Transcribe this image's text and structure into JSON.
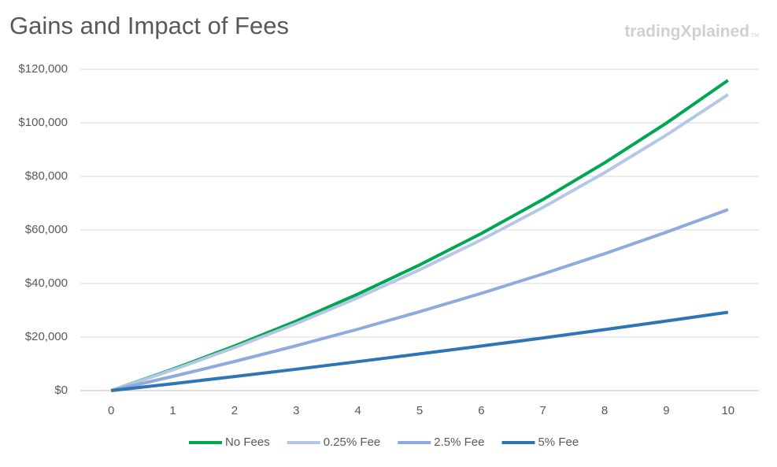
{
  "chart_data": {
    "type": "line",
    "title": "Gains and Impact of Fees",
    "watermark": "tradingXplained",
    "watermark_mark": "TM",
    "categories": [
      "0",
      "1",
      "2",
      "3",
      "4",
      "5",
      "6",
      "7",
      "8",
      "9",
      "10"
    ],
    "series": [
      {
        "name": "No Fees",
        "color": "#00a651",
        "values": [
          0,
          8000,
          16640,
          25971,
          36049,
          46933,
          58687,
          71382,
          85093,
          99900,
          115892
        ]
      },
      {
        "name": "0.25% Fee",
        "color": "#b4c7e7",
        "values": [
          0,
          7730,
          16058,
          25029,
          34694,
          45106,
          56323,
          68406,
          81424,
          95448,
          110556
        ]
      },
      {
        "name": "2.5% Fee",
        "color": "#8faadc",
        "values": [
          0,
          5300,
          10881,
          16758,
          22946,
          29462,
          36324,
          43549,
          51157,
          59168,
          67604
        ]
      },
      {
        "name": "5% Fee",
        "color": "#2e75b6",
        "values": [
          0,
          2600,
          5268,
          8005,
          10813,
          13694,
          16650,
          19683,
          22795,
          25987,
          29263
        ]
      }
    ],
    "ylim": [
      0,
      120000
    ],
    "yticks": [
      {
        "value": 0,
        "label": "$0"
      },
      {
        "value": 20000,
        "label": "$20,000"
      },
      {
        "value": 40000,
        "label": "$40,000"
      },
      {
        "value": 60000,
        "label": "$60,000"
      },
      {
        "value": 80000,
        "label": "$80,000"
      },
      {
        "value": 100000,
        "label": "$100,000"
      },
      {
        "value": 120000,
        "label": "$120,000"
      }
    ],
    "grid": true,
    "legend": "bottom"
  }
}
